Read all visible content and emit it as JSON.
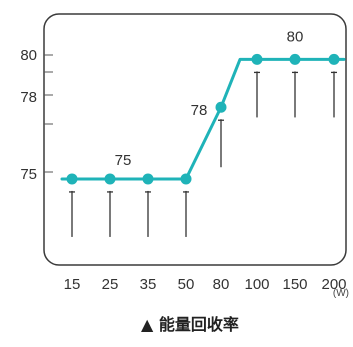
{
  "chart_data": {
    "type": "line",
    "caption": "▲ 能量回收率",
    "x_unit": "(W)",
    "categories": [
      "15",
      "25",
      "35",
      "50",
      "80",
      "100",
      "150",
      "200"
    ],
    "values": [
      75,
      75,
      75,
      75,
      78,
      80,
      80,
      80
    ],
    "y_ticks": [
      75,
      78,
      80
    ],
    "ylim": [
      71.4,
      81.9
    ],
    "annotations": [
      {
        "text": "75",
        "category_index": 2
      },
      {
        "text": "78",
        "category_index": 4
      },
      {
        "text": "80",
        "category_index": 6
      }
    ],
    "series_color": "#1fb3b8",
    "grid": false
  }
}
